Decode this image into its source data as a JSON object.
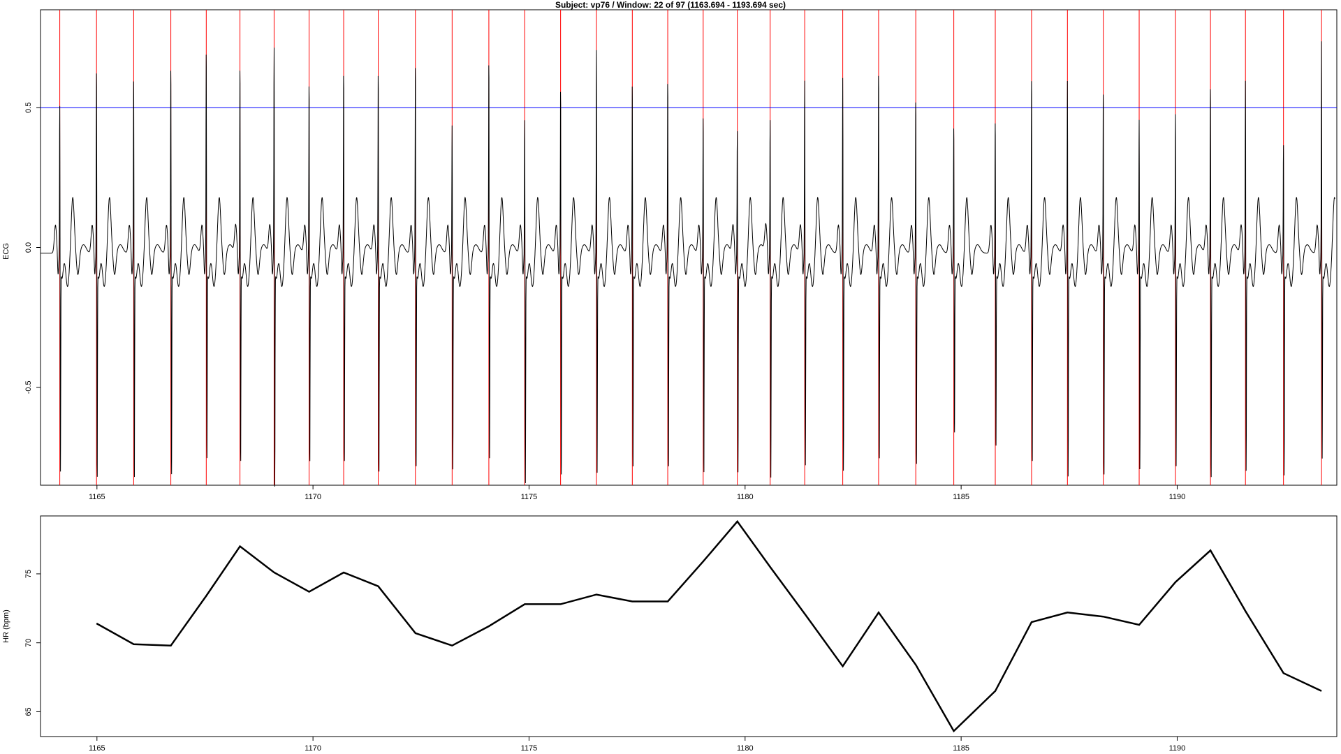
{
  "title": "Subject: vp76 / Window: 22 of 97 (1163.694 - 1193.694 sec)",
  "colors": {
    "r_peak_marker": "#ff0000",
    "threshold_line": "#0000ff",
    "signal": "#000000"
  },
  "chart_data": [
    {
      "type": "line",
      "ylabel": "ECG",
      "xlim": [
        1163.694,
        1193.694
      ],
      "ylim": [
        -0.85,
        0.85
      ],
      "x_ticks": [
        1165,
        1170,
        1175,
        1180,
        1185,
        1190
      ],
      "y_ticks": [
        -0.5,
        0.0,
        0.5
      ],
      "x_tick_labels": [
        "1165",
        "1170",
        "1175",
        "1180",
        "1185",
        "1190"
      ],
      "y_tick_labels": [
        "-0.5",
        "0.0",
        "0.5"
      ],
      "threshold": 0.5,
      "r_peaks": [
        1164.14,
        1164.99,
        1165.85,
        1166.71,
        1167.53,
        1168.31,
        1169.1,
        1169.91,
        1170.71,
        1171.51,
        1172.37,
        1173.22,
        1174.07,
        1174.9,
        1175.73,
        1176.56,
        1177.39,
        1178.21,
        1179.03,
        1179.82,
        1180.58,
        1181.38,
        1182.26,
        1183.09,
        1183.95,
        1184.83,
        1185.79,
        1186.63,
        1187.46,
        1188.29,
        1189.12,
        1189.96,
        1190.77,
        1191.58,
        1192.46,
        1193.34
      ],
      "peak_amplitudes": [
        0.57,
        0.71,
        0.68,
        0.72,
        0.78,
        0.72,
        0.78,
        0.66,
        0.7,
        0.7,
        0.73,
        0.5,
        0.74,
        0.52,
        0.64,
        0.77,
        0.66,
        0.67,
        0.54,
        0.48,
        0.52,
        0.66,
        0.67,
        0.7,
        0.6,
        0.5,
        0.52,
        0.68,
        0.66,
        0.63,
        0.52,
        0.54,
        0.65,
        0.66,
        0.43,
        0.8
      ],
      "trough_amplitudes": [
        -0.75,
        -0.8,
        -0.8,
        -0.79,
        -0.73,
        -0.74,
        -0.81,
        -0.74,
        -0.74,
        -0.78,
        -0.76,
        -0.74,
        -0.73,
        -0.79,
        -0.79,
        -0.76,
        -0.76,
        -0.76,
        -0.78,
        -0.75,
        -0.77,
        -0.73,
        -0.75,
        -0.73,
        -0.75,
        -0.63,
        -0.68,
        -0.74,
        -0.77,
        -0.79,
        -0.74,
        -0.73,
        -0.8,
        -0.75,
        -0.76,
        -0.71
      ],
      "signal_start": 1163.7,
      "signal_end": 1193.65
    },
    {
      "type": "line",
      "ylabel": "HR (bpm)",
      "xlim": [
        1163.694,
        1193.694
      ],
      "ylim": [
        63.2,
        79.2
      ],
      "x_ticks": [
        1165,
        1170,
        1175,
        1180,
        1185,
        1190
      ],
      "y_ticks": [
        65,
        70,
        75
      ],
      "x_tick_labels": [
        "1165",
        "1170",
        "1175",
        "1180",
        "1185",
        "1190"
      ],
      "y_tick_labels": [
        "65",
        "70",
        "75"
      ],
      "x": [
        1164.99,
        1165.85,
        1166.71,
        1167.53,
        1168.31,
        1169.1,
        1169.91,
        1170.71,
        1171.51,
        1172.37,
        1173.22,
        1174.07,
        1174.9,
        1175.73,
        1176.56,
        1177.39,
        1178.21,
        1179.03,
        1179.82,
        1180.58,
        1181.38,
        1182.26,
        1183.09,
        1183.95,
        1184.83,
        1185.79,
        1186.63,
        1187.46,
        1188.29,
        1189.12,
        1189.96,
        1190.77,
        1191.58,
        1192.46,
        1193.34
      ],
      "y": [
        71.4,
        69.9,
        69.8,
        73.4,
        77.0,
        75.1,
        73.7,
        75.1,
        74.1,
        70.7,
        69.8,
        71.2,
        72.8,
        72.8,
        73.5,
        73.0,
        73.0,
        75.9,
        78.8,
        75.5,
        72.1,
        68.3,
        72.2,
        68.4,
        63.6,
        66.5,
        71.5,
        72.2,
        71.9,
        71.3,
        74.4,
        76.7,
        72.3,
        67.8,
        66.5
      ]
    }
  ]
}
